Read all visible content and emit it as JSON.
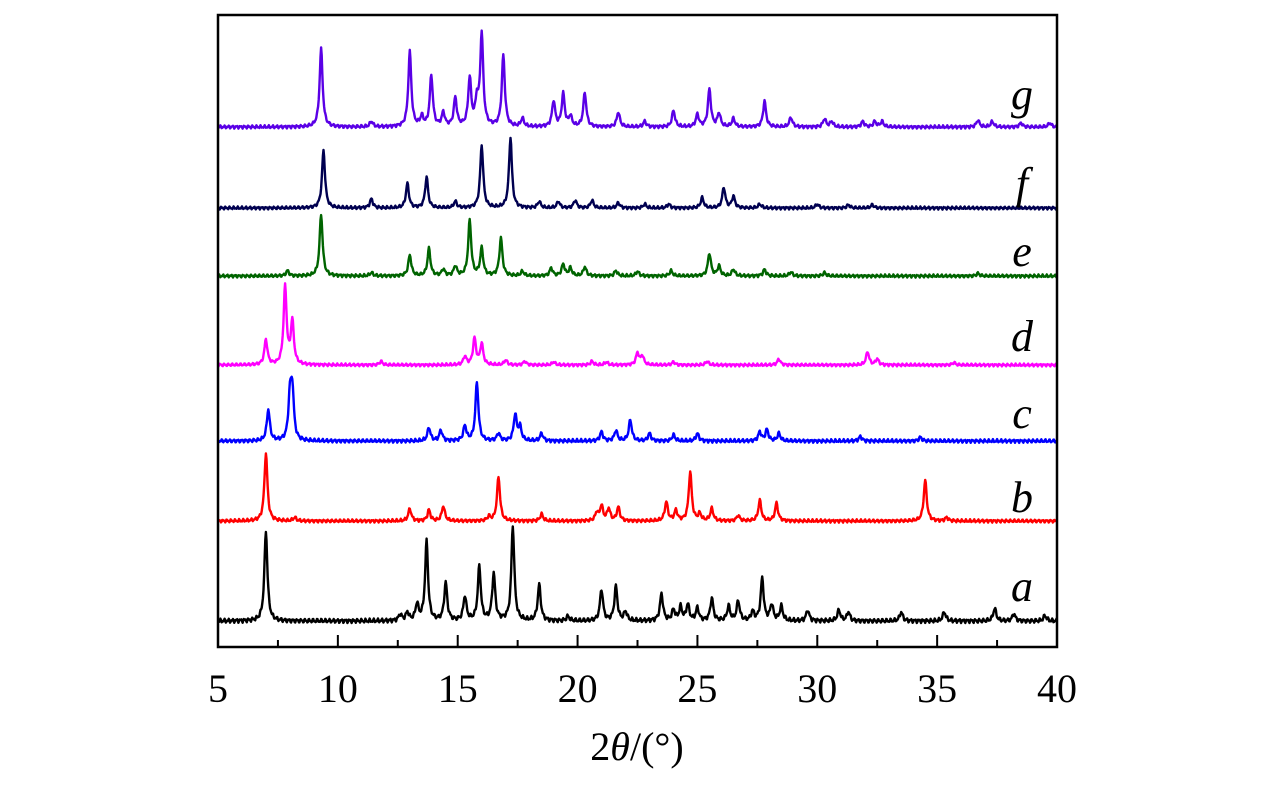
{
  "chart_data": {
    "type": "line",
    "xlabel_parts": [
      "2",
      "θ",
      "/(°)"
    ],
    "xlim": [
      5,
      40
    ],
    "xticks": [
      5,
      10,
      15,
      20,
      25,
      30,
      35,
      40
    ],
    "xtick_labels": [
      "5",
      "10",
      "15",
      "20",
      "25",
      "30",
      "35",
      "40"
    ],
    "yticks": "none",
    "grid": false,
    "legend": "none",
    "series": [
      {
        "name": "a",
        "color": "#000000",
        "baseline": 0.0,
        "peaks": [
          [
            7.0,
            1.0
          ],
          [
            12.6,
            0.07
          ],
          [
            12.9,
            0.09
          ],
          [
            13.3,
            0.18
          ],
          [
            13.7,
            0.88
          ],
          [
            14.5,
            0.42
          ],
          [
            15.3,
            0.27
          ],
          [
            15.9,
            0.6
          ],
          [
            16.5,
            0.52
          ],
          [
            17.3,
            1.05
          ],
          [
            18.4,
            0.4
          ],
          [
            19.6,
            0.05
          ],
          [
            21.0,
            0.35
          ],
          [
            21.6,
            0.38
          ],
          [
            22.0,
            0.1
          ],
          [
            23.5,
            0.3
          ],
          [
            24.0,
            0.12
          ],
          [
            24.3,
            0.15
          ],
          [
            24.6,
            0.18
          ],
          [
            25.0,
            0.14
          ],
          [
            25.6,
            0.25
          ],
          [
            26.3,
            0.16
          ],
          [
            26.7,
            0.22
          ],
          [
            27.3,
            0.1
          ],
          [
            27.7,
            0.47
          ],
          [
            28.1,
            0.18
          ],
          [
            28.5,
            0.16
          ],
          [
            29.6,
            0.12
          ],
          [
            30.9,
            0.12
          ],
          [
            31.3,
            0.1
          ],
          [
            33.5,
            0.1
          ],
          [
            35.3,
            0.1
          ],
          [
            37.4,
            0.14
          ],
          [
            38.2,
            0.08
          ],
          [
            39.5,
            0.06
          ]
        ]
      },
      {
        "name": "b",
        "color": "#ff0000",
        "baseline": 0.0,
        "peaks": [
          [
            7.0,
            1.0
          ],
          [
            8.2,
            0.05
          ],
          [
            13.0,
            0.18
          ],
          [
            13.8,
            0.16
          ],
          [
            14.4,
            0.22
          ],
          [
            16.3,
            0.06
          ],
          [
            16.7,
            0.65
          ],
          [
            18.5,
            0.1
          ],
          [
            20.8,
            0.12
          ],
          [
            21.0,
            0.22
          ],
          [
            21.3,
            0.18
          ],
          [
            21.7,
            0.2
          ],
          [
            23.7,
            0.28
          ],
          [
            24.1,
            0.15
          ],
          [
            24.7,
            0.72
          ],
          [
            25.1,
            0.1
          ],
          [
            25.6,
            0.18
          ],
          [
            26.7,
            0.08
          ],
          [
            27.6,
            0.3
          ],
          [
            28.3,
            0.26
          ],
          [
            34.5,
            0.6
          ],
          [
            35.4,
            0.05
          ]
        ]
      },
      {
        "name": "c",
        "color": "#0000ff",
        "baseline": 0.0,
        "peaks": [
          [
            7.1,
            0.42
          ],
          [
            8.0,
            0.55
          ],
          [
            8.1,
            0.65
          ],
          [
            13.8,
            0.18
          ],
          [
            14.3,
            0.14
          ],
          [
            15.3,
            0.2
          ],
          [
            15.8,
            0.78
          ],
          [
            16.7,
            0.1
          ],
          [
            17.4,
            0.35
          ],
          [
            17.6,
            0.18
          ],
          [
            18.5,
            0.1
          ],
          [
            21.0,
            0.12
          ],
          [
            21.6,
            0.14
          ],
          [
            22.2,
            0.28
          ],
          [
            23.0,
            0.1
          ],
          [
            24.0,
            0.08
          ],
          [
            25.0,
            0.1
          ],
          [
            27.6,
            0.12
          ],
          [
            27.9,
            0.15
          ],
          [
            28.4,
            0.1
          ],
          [
            31.8,
            0.06
          ],
          [
            34.3,
            0.05
          ]
        ]
      },
      {
        "name": "d",
        "color": "#ff00ff",
        "baseline": 0.0,
        "peaks": [
          [
            7.0,
            0.42
          ],
          [
            7.8,
            1.3
          ],
          [
            8.1,
            0.72
          ],
          [
            11.8,
            0.06
          ],
          [
            15.3,
            0.14
          ],
          [
            15.7,
            0.44
          ],
          [
            16.0,
            0.35
          ],
          [
            17.0,
            0.08
          ],
          [
            17.8,
            0.06
          ],
          [
            19.0,
            0.05
          ],
          [
            20.6,
            0.06
          ],
          [
            21.2,
            0.05
          ],
          [
            22.5,
            0.2
          ],
          [
            22.7,
            0.15
          ],
          [
            24.0,
            0.05
          ],
          [
            25.4,
            0.06
          ],
          [
            28.4,
            0.1
          ],
          [
            32.1,
            0.22
          ],
          [
            32.5,
            0.1
          ],
          [
            35.7,
            0.04
          ]
        ]
      },
      {
        "name": "e",
        "color": "#006400",
        "baseline": 0.0,
        "peaks": [
          [
            7.9,
            0.08
          ],
          [
            9.3,
            0.95
          ],
          [
            11.4,
            0.05
          ],
          [
            13.0,
            0.32
          ],
          [
            13.8,
            0.42
          ],
          [
            14.4,
            0.1
          ],
          [
            14.9,
            0.15
          ],
          [
            15.5,
            0.85
          ],
          [
            16.0,
            0.42
          ],
          [
            16.8,
            0.58
          ],
          [
            17.7,
            0.07
          ],
          [
            18.9,
            0.12
          ],
          [
            19.4,
            0.18
          ],
          [
            19.7,
            0.12
          ],
          [
            20.3,
            0.14
          ],
          [
            21.6,
            0.08
          ],
          [
            22.5,
            0.07
          ],
          [
            23.9,
            0.08
          ],
          [
            25.5,
            0.35
          ],
          [
            25.9,
            0.15
          ],
          [
            26.5,
            0.1
          ],
          [
            27.8,
            0.1
          ],
          [
            28.9,
            0.06
          ],
          [
            30.3,
            0.05
          ],
          [
            36.7,
            0.04
          ]
        ]
      },
      {
        "name": "f",
        "color": "#000050",
        "baseline": 0.0,
        "peaks": [
          [
            9.4,
            0.9
          ],
          [
            11.4,
            0.14
          ],
          [
            12.9,
            0.38
          ],
          [
            13.7,
            0.48
          ],
          [
            14.9,
            0.1
          ],
          [
            16.0,
            0.98
          ],
          [
            17.2,
            1.1
          ],
          [
            18.4,
            0.1
          ],
          [
            19.2,
            0.1
          ],
          [
            19.9,
            0.12
          ],
          [
            20.6,
            0.12
          ],
          [
            21.7,
            0.08
          ],
          [
            22.8,
            0.06
          ],
          [
            23.8,
            0.06
          ],
          [
            25.2,
            0.16
          ],
          [
            26.1,
            0.32
          ],
          [
            26.5,
            0.18
          ],
          [
            27.6,
            0.06
          ],
          [
            30.0,
            0.06
          ],
          [
            31.3,
            0.05
          ],
          [
            32.3,
            0.05
          ]
        ]
      },
      {
        "name": "g",
        "color": "#5a00e6",
        "baseline": 0.0,
        "peaks": [
          [
            9.3,
            1.15
          ],
          [
            11.4,
            0.08
          ],
          [
            13.0,
            1.1
          ],
          [
            13.5,
            0.14
          ],
          [
            13.9,
            0.75
          ],
          [
            14.4,
            0.2
          ],
          [
            14.9,
            0.42
          ],
          [
            15.5,
            0.7
          ],
          [
            15.8,
            0.35
          ],
          [
            16.0,
            1.35
          ],
          [
            16.9,
            1.05
          ],
          [
            17.7,
            0.12
          ],
          [
            19.0,
            0.38
          ],
          [
            19.4,
            0.48
          ],
          [
            19.7,
            0.15
          ],
          [
            20.3,
            0.5
          ],
          [
            21.7,
            0.22
          ],
          [
            22.8,
            0.08
          ],
          [
            24.0,
            0.24
          ],
          [
            25.0,
            0.18
          ],
          [
            25.5,
            0.55
          ],
          [
            25.9,
            0.2
          ],
          [
            26.5,
            0.12
          ],
          [
            27.8,
            0.38
          ],
          [
            28.9,
            0.14
          ],
          [
            30.3,
            0.12
          ],
          [
            30.6,
            0.08
          ],
          [
            31.9,
            0.08
          ],
          [
            32.4,
            0.08
          ],
          [
            32.7,
            0.08
          ],
          [
            36.7,
            0.1
          ],
          [
            37.3,
            0.08
          ],
          [
            38.5,
            0.06
          ],
          [
            39.7,
            0.06
          ]
        ]
      }
    ]
  }
}
